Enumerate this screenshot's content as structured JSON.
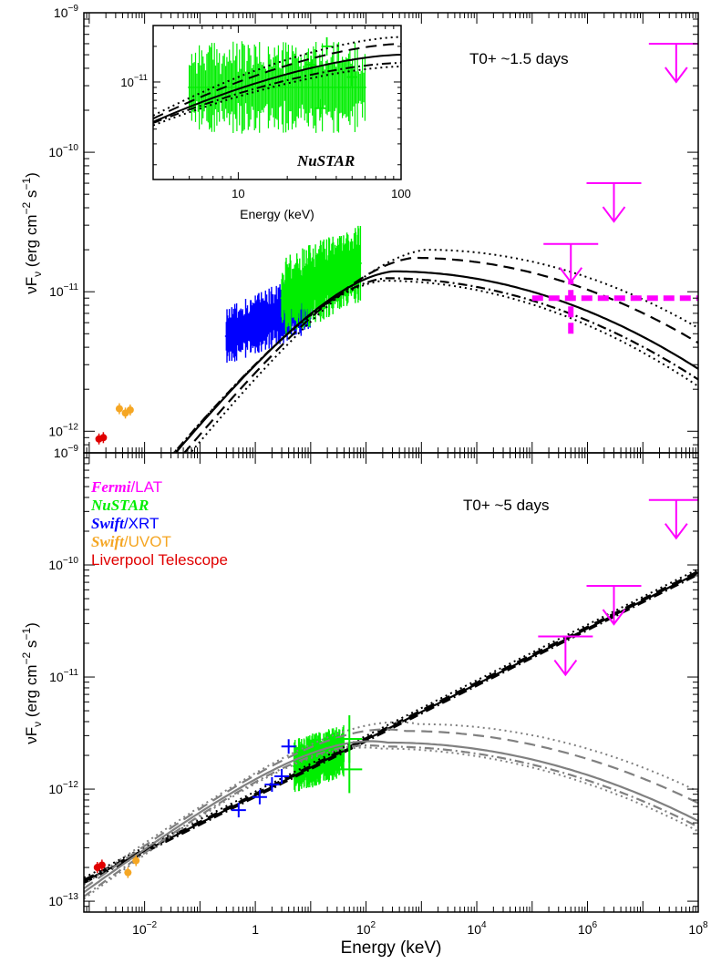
{
  "chart_data": [
    {
      "type": "scatter",
      "panel": "top",
      "annotation": "T0+ ~1.5 days",
      "xlabel": "",
      "ylabel": "νF_ν (erg cm^-2 s^-1)",
      "ylabel_parts": {
        "main": "νF",
        "sub": "ν",
        "unit_open": " (erg cm",
        "exp1": "−2",
        "mid": " s",
        "exp2": "−1",
        "unit_close": ")"
      },
      "x_scale": "log",
      "y_scale": "log",
      "xlim": [
        0.0008,
        100000000
      ],
      "ylim": [
        7e-13,
        1e-09
      ],
      "x_ticks": [
        "10^-2",
        "1",
        "10^2",
        "10^4",
        "10^6",
        "10^8"
      ],
      "y_ticks": [
        "10^-12",
        "10^-11",
        "10^-10",
        "10^-9"
      ],
      "series": [
        {
          "name": "Fermi/LAT",
          "kind": "upper_limits",
          "color": "#ff00ff",
          "points": [
            [
              500000,
              2.2e-11
            ],
            [
              3000000,
              6e-11
            ],
            [
              40000000,
              6e-10
            ]
          ]
        },
        {
          "name": "Fermi/LAT",
          "kind": "dashed_cross",
          "color": "#ff00ff",
          "x_range": [
            100000,
            100000000
          ],
          "y": 9e-12,
          "x_center": 500000,
          "y_range": [
            5e-12,
            1.2e-11
          ]
        },
        {
          "name": "Liverpool Telescope",
          "kind": "points",
          "color": "#e00000",
          "points": [
            [
              0.0015,
              8.8e-13
            ],
            [
              0.0018,
              9e-13
            ]
          ]
        },
        {
          "name": "Swift/UVOT",
          "kind": "points",
          "color": "#f5a623",
          "points": [
            [
              0.0035,
              1.45e-12
            ],
            [
              0.0045,
              1.35e-12
            ],
            [
              0.0055,
              1.42e-12
            ]
          ]
        },
        {
          "name": "Swift/XRT",
          "kind": "noisy_band",
          "color": "#0000ff",
          "x_range": [
            0.3,
            10
          ],
          "y_start": 4.8e-12,
          "y_end": 8.5e-12,
          "scatter": 0.45
        },
        {
          "name": "NuSTAR",
          "kind": "noisy_band",
          "color": "#00ee00",
          "x_range": [
            3,
            79
          ],
          "y_start": 9e-12,
          "y_end": 1.6e-11,
          "scatter": 0.6
        }
      ],
      "model_curves": [
        {
          "style": "solid",
          "color": "#000000",
          "peak_x": 300,
          "peak_y": 1.4e-11,
          "y_at_xmax": 2.8e-12
        },
        {
          "style": "dashed",
          "color": "#000000",
          "peak_x": 700,
          "peak_y": 1.75e-11,
          "y_at_xmax": 4.3e-12
        },
        {
          "style": "dotted",
          "color": "#000000",
          "peak_x": 1200,
          "peak_y": 2e-11,
          "y_at_xmax": 5.5e-12
        },
        {
          "style": "dotted",
          "color": "#000000",
          "peak_x": 200,
          "peak_y": 1.2e-11,
          "y_at_xmax": 2.1e-12
        },
        {
          "style": "dashdot",
          "color": "#000000",
          "peak_x": 220,
          "peak_y": 1.25e-11,
          "y_at_xmax": 2.35e-12
        }
      ],
      "inset": {
        "xlabel": "Energy (keV)",
        "label": "NuSTAR",
        "x_scale": "log",
        "y_scale": "log",
        "xlim": [
          3,
          100
        ],
        "ylim": [
          1.5e-12,
          3e-11
        ],
        "x_ticks": [
          "10",
          "100"
        ],
        "y_ticks": [
          "10^-11"
        ],
        "data": {
          "name": "NuSTAR",
          "color": "#00ee00",
          "x_range": [
            5,
            60
          ],
          "y_center": 9e-12,
          "scatter": 0.8
        },
        "extra_crosses": [
          [
            28,
            1.4e-11
          ],
          [
            32,
            6e-12
          ],
          [
            35,
            2e-11
          ],
          [
            50,
            1.1e-11
          ]
        ],
        "model_lines": [
          {
            "style": "solid",
            "y_start": 4.6e-12,
            "y_end": 1.7e-11
          },
          {
            "style": "dashed",
            "y_start": 4.9e-12,
            "y_end": 2.1e-11
          },
          {
            "style": "dotted",
            "y_start": 5.2e-12,
            "y_end": 2.4e-11
          },
          {
            "style": "dotted",
            "y_start": 4.3e-12,
            "y_end": 1.35e-11
          },
          {
            "style": "dashdot",
            "y_start": 4.5e-12,
            "y_end": 1.45e-11
          }
        ]
      }
    },
    {
      "type": "scatter",
      "panel": "bottom",
      "annotation": "T0+ ~5 days",
      "xlabel": "Energy (keV)",
      "ylabel": "νF_ν (erg cm^-2 s^-1)",
      "ylabel_parts": {
        "main": "νF",
        "sub": "ν",
        "unit_open": " (erg cm",
        "exp1": "−2",
        "mid": " s",
        "exp2": "−1",
        "unit_close": ")"
      },
      "x_scale": "log",
      "y_scale": "log",
      "xlim": [
        0.0008,
        100000000
      ],
      "ylim": [
        8e-14,
        1e-09
      ],
      "x_ticks": [
        "10^-2",
        "1",
        "10^2",
        "10^4",
        "10^6",
        "10^8"
      ],
      "y_ticks": [
        "10^-13",
        "10^-12",
        "10^-11",
        "10^-10",
        "10^-9"
      ],
      "legend": {
        "placement": "top-left",
        "entries": [
          {
            "italic": "Fermi",
            "rest": "/LAT",
            "color": "#ff00ff"
          },
          {
            "italic": "NuSTAR",
            "rest": "",
            "color": "#00ee00"
          },
          {
            "italic": "Swift",
            "rest": "/XRT",
            "color": "#0000ff"
          },
          {
            "italic": "Swift",
            "rest": "/UVOT",
            "color": "#f5a623"
          },
          {
            "italic": "",
            "rest": "Liverpool Telescope",
            "color": "#e00000"
          }
        ]
      },
      "series": [
        {
          "name": "Fermi/LAT",
          "kind": "upper_limits",
          "color": "#ff00ff",
          "points": [
            [
              400000,
              2.3e-11
            ],
            [
              3000000,
              6.5e-11
            ],
            [
              40000000,
              3.8e-10
            ]
          ]
        },
        {
          "name": "Liverpool Telescope",
          "kind": "points",
          "color": "#e00000",
          "points": [
            [
              0.0014,
              2e-13
            ],
            [
              0.0017,
              2.1e-13
            ]
          ]
        },
        {
          "name": "Swift/UVOT",
          "kind": "points",
          "color": "#f5a623",
          "points": [
            [
              0.005,
              1.8e-13
            ],
            [
              0.007,
              2.3e-13
            ]
          ]
        },
        {
          "name": "Swift/XRT",
          "kind": "crosses",
          "color": "#0000ff",
          "points": [
            [
              0.5,
              6.5e-13
            ],
            [
              1.2,
              8.5e-13
            ],
            [
              2,
              1.1e-12
            ],
            [
              3,
              1.3e-12
            ],
            [
              4,
              2.4e-12
            ]
          ]
        },
        {
          "name": "NuSTAR",
          "kind": "noisy_band",
          "color": "#00ee00",
          "x_range": [
            5,
            40
          ],
          "y_start": 1.6e-12,
          "y_end": 2.2e-12,
          "scatter": 0.5
        },
        {
          "name": "NuSTAR",
          "kind": "crosses",
          "color": "#00ee00",
          "points": [
            [
              50,
              2.8e-12
            ],
            [
              50,
              1.5e-12
            ]
          ]
        }
      ],
      "model_curves": [
        {
          "style": "solid",
          "color": "#000000",
          "y_at_xmin": 1.5e-13,
          "y_at_xmax": 8.5e-11
        },
        {
          "style": "dashed",
          "color": "#000000",
          "y_at_xmin": 1.55e-13,
          "y_at_xmax": 8.8e-11
        },
        {
          "style": "dotted",
          "color": "#000000",
          "y_at_xmin": 1.62e-13,
          "y_at_xmax": 9.2e-11
        },
        {
          "style": "dashdot",
          "color": "#000000",
          "y_at_xmin": 1.45e-13,
          "y_at_xmax": 8.2e-11
        },
        {
          "style": "solid",
          "color": "#808080",
          "peak_x": 250,
          "peak_y": 2.6e-12,
          "y_at_xmin": 1.2e-13,
          "y_at_xmax": 5.2e-13
        },
        {
          "style": "dashed",
          "color": "#808080",
          "peak_x": 500,
          "peak_y": 3.3e-12,
          "y_at_xmin": 1.3e-13,
          "y_at_xmax": 7.5e-13
        },
        {
          "style": "dotted",
          "color": "#808080",
          "peak_x": 900,
          "peak_y": 3.8e-12,
          "y_at_xmin": 1.4e-13,
          "y_at_xmax": 9.5e-13
        },
        {
          "style": "dotted",
          "color": "#808080",
          "peak_x": 180,
          "peak_y": 2.3e-12,
          "y_at_xmin": 1.05e-13,
          "y_at_xmax": 4.2e-13
        },
        {
          "style": "dashdot",
          "color": "#808080",
          "peak_x": 200,
          "peak_y": 2.4e-12,
          "y_at_xmin": 1.1e-13,
          "y_at_xmax": 4.6e-13
        }
      ]
    }
  ]
}
